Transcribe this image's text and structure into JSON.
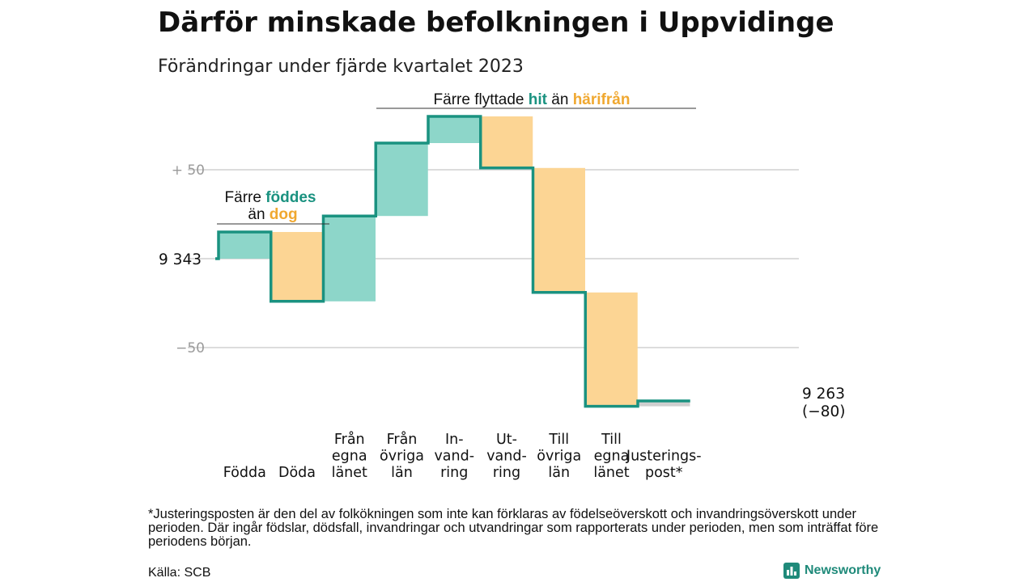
{
  "title": "Därför minskade befolkningen i Uppvidinge",
  "subtitle": "Förändringar under fjärde kvartalet 2023",
  "chart_data": {
    "type": "waterfall",
    "start_value": 9343,
    "end_value": 9263,
    "end_value_label": "9 263",
    "end_change_label": "(−80)",
    "start_label": "9  343",
    "y_tick_labels": [
      {
        "value": 50,
        "label": "+  50"
      },
      {
        "value": 0,
        "label": ""
      },
      {
        "value": -50,
        "label": "−50"
      }
    ],
    "steps": [
      {
        "label": [
          "Födda"
        ],
        "change": 15,
        "kind": "in"
      },
      {
        "label": [
          "Döda"
        ],
        "change": -39,
        "kind": "out"
      },
      {
        "label": [
          "Från",
          "egna",
          "länet"
        ],
        "change": 48,
        "kind": "in"
      },
      {
        "label": [
          "Från",
          "övriga",
          "län"
        ],
        "change": 41,
        "kind": "in"
      },
      {
        "label": [
          "In-",
          "vand-",
          "ring"
        ],
        "change": 15,
        "kind": "in"
      },
      {
        "label": [
          "Ut-",
          "vand-",
          "ring"
        ],
        "change": -29,
        "kind": "out"
      },
      {
        "label": [
          "Till",
          "övriga",
          "län"
        ],
        "change": -70,
        "kind": "out"
      },
      {
        "label": [
          "Till",
          "egna",
          "länet"
        ],
        "change": -64,
        "kind": "out"
      },
      {
        "label": [
          "Justerings-",
          "post*"
        ],
        "change": 3,
        "kind": "adjustment"
      }
    ],
    "colors": {
      "in": "#8dd6c9",
      "out": "#fcd594",
      "adjustment": "#cfcfcf",
      "line": "#1a9280"
    },
    "annotations": {
      "births": {
        "line1": "Färre ",
        "line1_em": "föddes",
        "line2": "än ",
        "line2_em": "dog"
      },
      "migration": {
        "pre": "Färre flyttade ",
        "em1": "hit",
        "mid": " än ",
        "em2": "härifrån"
      }
    },
    "grid": true
  },
  "footnote": "*Justeringsposten är den del av folkökningen som inte kan förklaras av födelseöverskott och invandringsöverskott under perioden. Där ingår födslar, dödsfall, invandringar och utvandringar som rapporterats under perioden, men som inträffat före periodens början.",
  "source": "Källa: SCB",
  "brand": {
    "name": "Newsworthy",
    "icon": "bar-chart-logo-icon"
  }
}
